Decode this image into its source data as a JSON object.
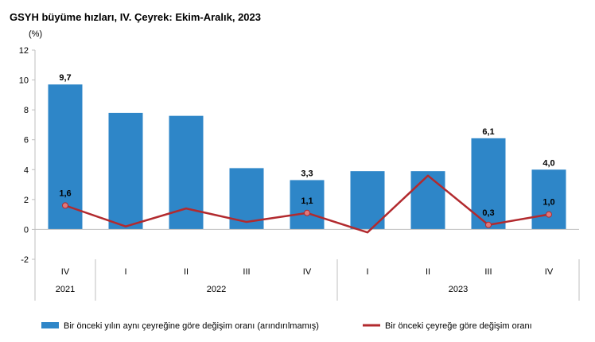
{
  "chart_data": {
    "type": "bar",
    "title": "GSYH büyüme hızları, IV. Çeyrek: Ekim-Aralık, 2023",
    "ylabel": "(%)",
    "xlabel": "",
    "ylim": [
      -2,
      12
    ],
    "yticks": [
      "-2",
      "0",
      "2",
      "4",
      "6",
      "8",
      "10",
      "12"
    ],
    "grid": false,
    "legend_position": "bottom",
    "categories": [
      "IV",
      "I",
      "II",
      "III",
      "IV",
      "I",
      "II",
      "III",
      "IV"
    ],
    "years": [
      {
        "label": "2021",
        "start": 0,
        "end": 0
      },
      {
        "label": "2022",
        "start": 1,
        "end": 4
      },
      {
        "label": "2023",
        "start": 5,
        "end": 8
      }
    ],
    "series": [
      {
        "name": "Bir önceki yılın aynı çeyreğine göre değişim oranı (arındırılmamış)",
        "type": "bar",
        "color": "#2e86c8",
        "values": [
          9.7,
          7.8,
          7.6,
          4.1,
          3.3,
          3.9,
          3.9,
          6.1,
          4.0
        ],
        "labels": [
          "9,7",
          "",
          "",
          "",
          "3,3",
          "",
          "",
          "6,1",
          "4,0"
        ]
      },
      {
        "name": "Bir önceki çeyreğe göre değişim oranı",
        "type": "line",
        "color": "#b22a2e",
        "values": [
          1.6,
          0.2,
          1.4,
          0.5,
          1.1,
          -0.2,
          3.6,
          0.3,
          1.0
        ],
        "labels": [
          "1,6",
          "",
          "",
          "",
          "1,1",
          "",
          "",
          "0,3",
          "1,0"
        ]
      }
    ]
  }
}
